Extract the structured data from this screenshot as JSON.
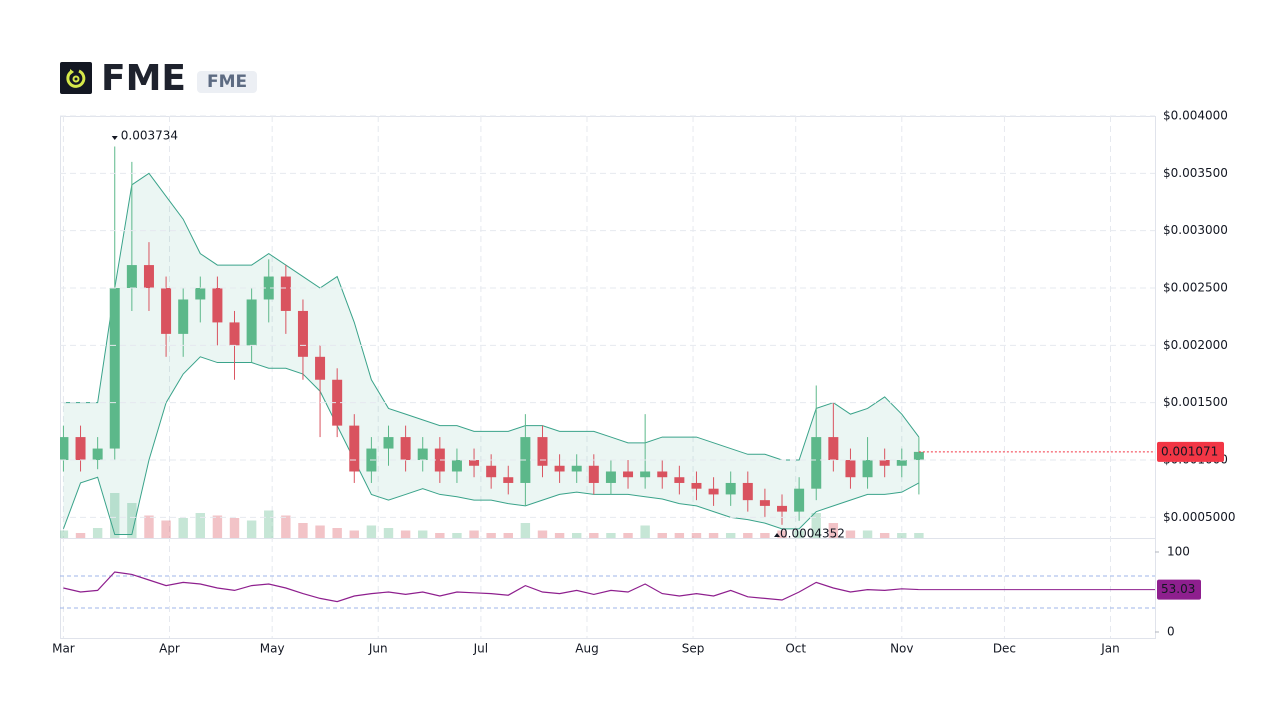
{
  "header": {
    "title": "FME",
    "symbol": "FME"
  },
  "chart_data": [
    {
      "type": "candlestick",
      "x": [
        0,
        5,
        10,
        15,
        20,
        25,
        30,
        35,
        40,
        45,
        50,
        55,
        60,
        65,
        70,
        75,
        80,
        85,
        90,
        95,
        100,
        105,
        110,
        115,
        120,
        125,
        130,
        135,
        140,
        145,
        150,
        155,
        160,
        165,
        170,
        175,
        180,
        185,
        190,
        195,
        200,
        205,
        210,
        215,
        220,
        225,
        230,
        235,
        240,
        245,
        250
      ],
      "open": [
        0.001,
        0.0012,
        0.001,
        0.0011,
        0.0025,
        0.0027,
        0.0025,
        0.0021,
        0.0024,
        0.0025,
        0.0022,
        0.002,
        0.0024,
        0.0026,
        0.0023,
        0.0019,
        0.0017,
        0.0013,
        0.0009,
        0.0011,
        0.0012,
        0.001,
        0.0011,
        0.0009,
        0.001,
        0.00095,
        0.00085,
        0.0008,
        0.0012,
        0.00095,
        0.0009,
        0.00095,
        0.0008,
        0.0009,
        0.00085,
        0.0009,
        0.00085,
        0.0008,
        0.00075,
        0.0007,
        0.0008,
        0.00065,
        0.0006,
        0.00055,
        0.00075,
        0.0012,
        0.001,
        0.00085,
        0.001,
        0.00095,
        0.001
      ],
      "high": [
        0.0013,
        0.0013,
        0.0012,
        0.003734,
        0.0036,
        0.0029,
        0.0026,
        0.0025,
        0.0026,
        0.0026,
        0.0023,
        0.0025,
        0.00275,
        0.0027,
        0.0024,
        0.002,
        0.0018,
        0.0014,
        0.0012,
        0.0013,
        0.0013,
        0.0012,
        0.0012,
        0.0011,
        0.0011,
        0.00105,
        0.00095,
        0.0014,
        0.0013,
        0.00105,
        0.00105,
        0.00105,
        0.001,
        0.001,
        0.0014,
        0.001,
        0.00095,
        0.0009,
        0.00085,
        0.0009,
        0.0009,
        0.00075,
        0.0007,
        0.00085,
        0.00165,
        0.0015,
        0.0011,
        0.0012,
        0.0011,
        0.0011,
        0.0012
      ],
      "low": [
        0.0009,
        0.0009,
        0.00092,
        0.001,
        0.0023,
        0.0023,
        0.0019,
        0.0019,
        0.0022,
        0.002,
        0.0017,
        0.00185,
        0.0022,
        0.0021,
        0.0017,
        0.0012,
        0.0012,
        0.0008,
        0.0008,
        0.00095,
        0.0009,
        0.0009,
        0.0008,
        0.0008,
        0.00085,
        0.00075,
        0.0007,
        0.0006,
        0.00085,
        0.0008,
        0.0008,
        0.0007,
        0.0007,
        0.00075,
        0.00075,
        0.00075,
        0.0007,
        0.00065,
        0.0006,
        0.0006,
        0.00055,
        0.0005,
        0.0004352,
        0.00047,
        0.00065,
        0.0009,
        0.00075,
        0.00075,
        0.00085,
        0.00085,
        0.0007
      ],
      "close": [
        0.0012,
        0.001,
        0.0011,
        0.0025,
        0.0027,
        0.0025,
        0.0021,
        0.0024,
        0.0025,
        0.0022,
        0.002,
        0.0024,
        0.0026,
        0.0023,
        0.0019,
        0.0017,
        0.0013,
        0.0009,
        0.0011,
        0.0012,
        0.001,
        0.0011,
        0.0009,
        0.001,
        0.00095,
        0.00085,
        0.0008,
        0.0012,
        0.00095,
        0.0009,
        0.00095,
        0.0008,
        0.0009,
        0.00085,
        0.0009,
        0.00085,
        0.0008,
        0.00075,
        0.0007,
        0.0008,
        0.00065,
        0.0006,
        0.00055,
        0.00075,
        0.0012,
        0.001,
        0.00085,
        0.001,
        0.00095,
        0.001,
        0.001071
      ],
      "band_upper": [
        0.0015,
        0.0015,
        0.0015,
        0.0025,
        0.0034,
        0.0035,
        0.0033,
        0.0031,
        0.0028,
        0.0027,
        0.0027,
        0.0027,
        0.0028,
        0.0027,
        0.0026,
        0.0025,
        0.0026,
        0.0022,
        0.0017,
        0.00145,
        0.0014,
        0.00135,
        0.0013,
        0.0013,
        0.00125,
        0.00125,
        0.00125,
        0.0013,
        0.0013,
        0.00125,
        0.00125,
        0.00125,
        0.0012,
        0.00115,
        0.00115,
        0.0012,
        0.0012,
        0.0012,
        0.00115,
        0.0011,
        0.00105,
        0.00105,
        0.001,
        0.001,
        0.00145,
        0.0015,
        0.0014,
        0.00145,
        0.00155,
        0.0014,
        0.0012
      ],
      "band_lower": [
        0.0004,
        0.0008,
        0.00085,
        0.00035,
        0.00035,
        0.001,
        0.0015,
        0.00175,
        0.0019,
        0.00185,
        0.00185,
        0.00185,
        0.0018,
        0.0018,
        0.00175,
        0.0016,
        0.0013,
        0.001,
        0.0007,
        0.00065,
        0.0007,
        0.00075,
        0.0007,
        0.00068,
        0.00065,
        0.00065,
        0.00062,
        0.0006,
        0.00065,
        0.0007,
        0.00072,
        0.0007,
        0.0007,
        0.0007,
        0.00068,
        0.00066,
        0.00062,
        0.0006,
        0.00055,
        0.0005,
        0.00048,
        0.00045,
        0.0004,
        0.0004,
        0.00055,
        0.0006,
        0.00065,
        0.0007,
        0.0007,
        0.00072,
        0.0008
      ],
      "volume": [
        3,
        2,
        4,
        18,
        14,
        9,
        7,
        8,
        10,
        9,
        8,
        7,
        11,
        9,
        6,
        5,
        4,
        3,
        5,
        4,
        3,
        3,
        2,
        2,
        3,
        2,
        2,
        6,
        3,
        2,
        2,
        2,
        2,
        2,
        5,
        2,
        2,
        2,
        2,
        2,
        2,
        2,
        3,
        3,
        10,
        6,
        3,
        3,
        2,
        2,
        2
      ],
      "xlim": [
        -1,
        319
      ],
      "ylim": [
        0.00032,
        0.004
      ],
      "yticks": [
        {
          "value": 0.0005,
          "label": "$0.0005000"
        },
        {
          "value": 0.001,
          "label": "$0.001000"
        },
        {
          "value": 0.0015,
          "label": "$0.001500"
        },
        {
          "value": 0.002,
          "label": "$0.002000"
        },
        {
          "value": 0.0025,
          "label": "$0.002500"
        },
        {
          "value": 0.003,
          "label": "$0.003000"
        },
        {
          "value": 0.0035,
          "label": "$0.003500"
        },
        {
          "value": 0.004,
          "label": "$0.004000"
        }
      ],
      "up_color": "#5cb88a",
      "down_color": "#d9535f",
      "band_color": "#3aa38a",
      "last_color": "#f23645",
      "grid": true
    },
    {
      "type": "line",
      "name": "RSI",
      "x": [
        0,
        5,
        10,
        15,
        20,
        25,
        30,
        35,
        40,
        45,
        50,
        55,
        60,
        65,
        70,
        75,
        80,
        85,
        90,
        95,
        100,
        105,
        110,
        115,
        120,
        125,
        130,
        135,
        140,
        145,
        150,
        155,
        160,
        165,
        170,
        175,
        180,
        185,
        190,
        195,
        200,
        205,
        210,
        215,
        220,
        225,
        230,
        235,
        240,
        245,
        250
      ],
      "values": [
        55,
        50,
        52,
        75,
        72,
        65,
        58,
        62,
        60,
        55,
        52,
        58,
        60,
        55,
        48,
        42,
        38,
        45,
        48,
        50,
        47,
        50,
        45,
        50,
        49,
        48,
        46,
        58,
        50,
        48,
        52,
        47,
        52,
        50,
        60,
        48,
        45,
        48,
        45,
        52,
        44,
        42,
        40,
        50,
        62,
        55,
        50,
        53,
        52,
        54,
        53.03
      ],
      "color": "#8e1f8e",
      "levels": [
        70,
        30
      ],
      "xlim": [
        -1,
        319
      ],
      "ylim": [
        0,
        100
      ],
      "yticks": [
        0,
        100
      ],
      "xticks": [
        {
          "value": 0,
          "label": "Mar"
        },
        {
          "value": 31,
          "label": "Apr"
        },
        {
          "value": 61,
          "label": "May"
        },
        {
          "value": 92,
          "label": "Jun"
        },
        {
          "value": 122,
          "label": "Jul"
        },
        {
          "value": 153,
          "label": "Aug"
        },
        {
          "value": 184,
          "label": "Sep"
        },
        {
          "value": 214,
          "label": "Oct"
        },
        {
          "value": 245,
          "label": "Nov"
        },
        {
          "value": 275,
          "label": "Dec"
        },
        {
          "value": 306,
          "label": "Jan"
        }
      ]
    }
  ]
}
